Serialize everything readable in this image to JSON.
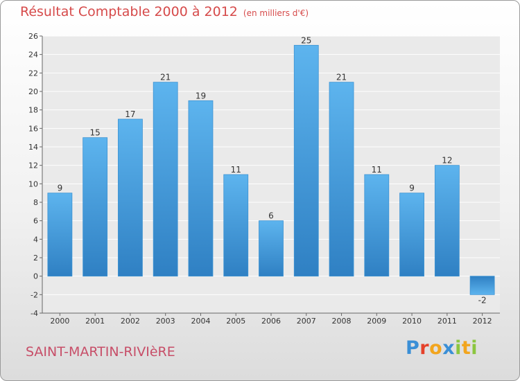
{
  "title": "Résultat Comptable 2000 à 2012",
  "unit": "(en milliers d'€)",
  "commune": "SAINT-MARTIN-RIVIèRE",
  "logo": {
    "letters": [
      "P",
      "r",
      "o",
      "x",
      "i",
      "t",
      "i"
    ],
    "colors": [
      "#3a8fd6",
      "#e5412a",
      "#f2a51e",
      "#3a8fd6",
      "#8cc640",
      "#f2a51e",
      "#8cc640"
    ]
  },
  "colors": {
    "bar": "#4aa3e3",
    "title": "#d64a4a",
    "commune": "#c74e68"
  },
  "chart_data": {
    "type": "bar",
    "title": "Résultat Comptable 2000 à 2012",
    "xlabel": "",
    "ylabel": "",
    "categories": [
      "2000",
      "2001",
      "2002",
      "2003",
      "2004",
      "2005",
      "2006",
      "2007",
      "2008",
      "2009",
      "2010",
      "2011",
      "2012"
    ],
    "values": [
      9,
      15,
      17,
      21,
      19,
      11,
      6,
      25,
      21,
      11,
      9,
      12,
      -2
    ],
    "ylim": [
      -4,
      26
    ],
    "yticks": [
      -4,
      -2,
      0,
      2,
      4,
      6,
      8,
      10,
      12,
      14,
      16,
      18,
      20,
      22,
      24,
      26
    ],
    "grid": true
  }
}
